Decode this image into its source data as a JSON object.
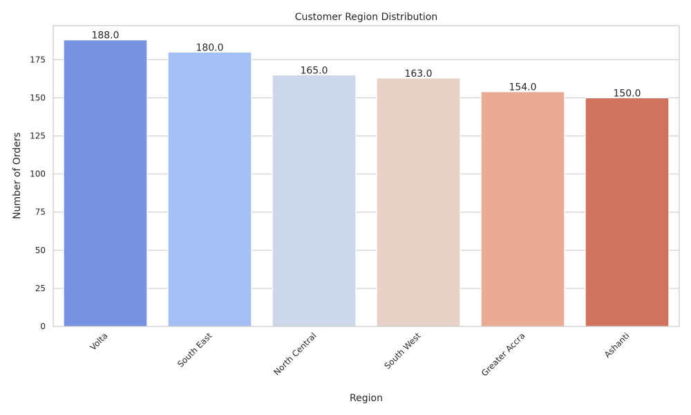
{
  "chart_data": {
    "type": "bar",
    "title": "Customer Region Distribution",
    "xlabel": "Region",
    "ylabel": "Number of Orders",
    "categories": [
      "Volta",
      "South East",
      "North Central",
      "South West",
      "Greater Accra",
      "Ashanti"
    ],
    "values": [
      188,
      180,
      165,
      163,
      154,
      150
    ],
    "value_labels": [
      "188.0",
      "180.0",
      "165.0",
      "163.0",
      "154.0",
      "150.0"
    ],
    "colors": [
      "#7792e0",
      "#a4bff4",
      "#ccd8ea",
      "#e8d2c7",
      "#eaab94",
      "#d0735f"
    ],
    "yticks": [
      0,
      25,
      50,
      75,
      100,
      125,
      150,
      175
    ],
    "ylim": [
      0,
      197.4
    ],
    "grid": true,
    "x_tick_rotation": 45
  }
}
